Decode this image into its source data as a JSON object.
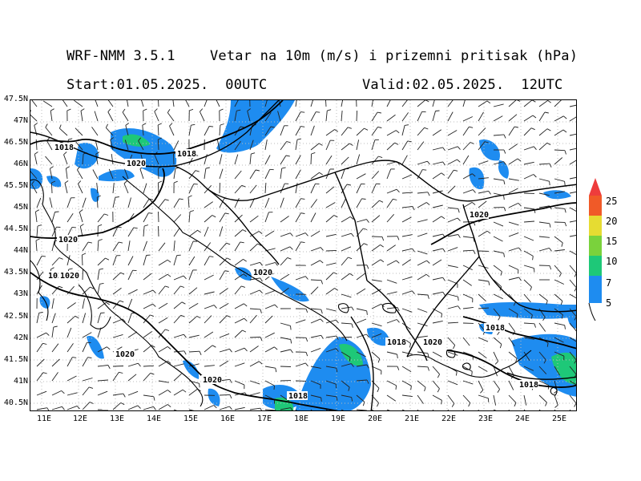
{
  "header": {
    "model": "WRF-NMM 3.5.1",
    "field": "Vetar na 10m (m/s) i prizemni pritisak (hPa)",
    "start": "Start:01.05.2025.  00UTC",
    "valid": "Valid:02.05.2025.  12UTC"
  },
  "axes": {
    "lat_labels": [
      "47.5N",
      "47N",
      "46.5N",
      "46N",
      "45.5N",
      "45N",
      "44.5N",
      "44N",
      "43.5N",
      "43N",
      "42.5N",
      "42N",
      "41.5N",
      "41N",
      "40.5N"
    ],
    "lon_labels": [
      "11E",
      "12E",
      "13E",
      "14E",
      "15E",
      "16E",
      "17E",
      "18E",
      "19E",
      "20E",
      "21E",
      "22E",
      "23E",
      "24E",
      "25E"
    ]
  },
  "legend": {
    "levels": [
      "5",
      "7",
      "10",
      "15",
      "20",
      "25"
    ],
    "colors": [
      "#1e8cf0",
      "#1ec878",
      "#7ad23c",
      "#e6dc32",
      "#f0a028",
      "#f05a28",
      "#ee3c3c"
    ]
  },
  "isobar_labels": [
    {
      "text": "1018",
      "id": "iso-1"
    },
    {
      "text": "1018",
      "id": "iso-2"
    },
    {
      "text": "1020",
      "id": "iso-3"
    },
    {
      "text": "1020",
      "id": "iso-4"
    },
    {
      "text": "1020",
      "id": "iso-5"
    },
    {
      "text": "1020",
      "id": "iso-6"
    },
    {
      "text": "1020",
      "id": "iso-7"
    },
    {
      "text": "1020",
      "id": "iso-8"
    },
    {
      "text": "1020",
      "id": "iso-9"
    },
    {
      "text": "1020",
      "id": "iso-10"
    },
    {
      "text": "1018",
      "id": "iso-11"
    },
    {
      "text": "1018",
      "id": "iso-12"
    },
    {
      "text": "1018",
      "id": "iso-13"
    },
    {
      "text": "1018",
      "id": "iso-14"
    },
    {
      "text": "1020",
      "id": "iso-15"
    }
  ]
}
